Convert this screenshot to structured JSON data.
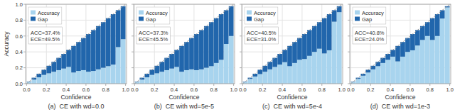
{
  "chart_data": [
    {
      "type": "bar",
      "stacked": true,
      "title": "(a)  CE with wd=0.0",
      "xlabel": "Confidence",
      "ylabel": "Accuracy",
      "x": [
        0.025,
        0.075,
        0.125,
        0.175,
        0.225,
        0.275,
        0.325,
        0.375,
        0.425,
        0.475,
        0.525,
        0.575,
        0.625,
        0.675,
        0.725,
        0.775,
        0.825,
        0.875,
        0.925,
        0.975
      ],
      "series": [
        {
          "name": "Accuracy",
          "color": "#a8d4ee",
          "values": [
            0.02,
            0.05,
            0.08,
            0.11,
            0.13,
            0.15,
            0.17,
            0.19,
            0.21,
            0.14,
            0.16,
            0.17,
            0.15,
            0.16,
            0.18,
            0.2,
            0.22,
            0.24,
            0.46,
            0.56
          ]
        },
        {
          "name": "Gap",
          "color": "#2166ac",
          "values": [
            0.005,
            0.025,
            0.045,
            0.065,
            0.095,
            0.125,
            0.155,
            0.185,
            0.215,
            0.335,
            0.365,
            0.405,
            0.475,
            0.515,
            0.545,
            0.575,
            0.605,
            0.635,
            0.465,
            0.415
          ]
        },
        {
          "type": "line",
          "color": "#999999",
          "line_style": "dashed",
          "x": [
            0,
            1
          ],
          "values": [
            0,
            1
          ]
        }
      ],
      "xlim": [
        -0.01,
        1.01
      ],
      "ylim": [
        0,
        1
      ],
      "xticks": [
        {
          "value": 0,
          "label": "0.0"
        },
        0.2,
        0.4,
        0.6,
        0.8,
        {
          "value": 1,
          "label": "1.0"
        }
      ],
      "yticks": [
        {
          "value": 0,
          "label": "0.0"
        },
        0.2,
        0.4,
        0.6,
        0.8,
        {
          "value": 1,
          "label": "1.0"
        }
      ],
      "grid": true,
      "legend": "upper left",
      "annotations": [
        "ACC=37.4%",
        "ECE=49.5%"
      ]
    },
    {
      "type": "bar",
      "stacked": true,
      "title": "(b)  CE with wd=5e-5",
      "xlabel": "Confidence",
      "x": [
        0.025,
        0.075,
        0.125,
        0.175,
        0.225,
        0.275,
        0.325,
        0.375,
        0.425,
        0.475,
        0.525,
        0.575,
        0.625,
        0.675,
        0.725,
        0.775,
        0.825,
        0.875,
        0.925,
        0.975
      ],
      "series": [
        {
          "name": "Accuracy",
          "color": "#a8d4ee",
          "values": [
            0.02,
            0.05,
            0.08,
            0.11,
            0.13,
            0.15,
            0.17,
            0.19,
            0.21,
            0.15,
            0.17,
            0.18,
            0.17,
            0.18,
            0.2,
            0.22,
            0.26,
            0.3,
            0.5,
            0.6
          ]
        },
        {
          "name": "Gap",
          "color": "#2166ac",
          "values": [
            0.005,
            0.025,
            0.045,
            0.065,
            0.095,
            0.125,
            0.155,
            0.185,
            0.215,
            0.325,
            0.355,
            0.395,
            0.455,
            0.495,
            0.525,
            0.555,
            0.565,
            0.575,
            0.425,
            0.375
          ]
        },
        {
          "type": "line",
          "color": "#999999",
          "line_style": "dashed",
          "x": [
            0,
            1
          ],
          "values": [
            0,
            1
          ]
        }
      ],
      "xlim": [
        -0.01,
        1.01
      ],
      "ylim": [
        0,
        1
      ],
      "xticks": [
        {
          "value": 0,
          "label": "0.0"
        },
        0.2,
        0.4,
        0.6,
        0.8,
        {
          "value": 1,
          "label": "1.0"
        }
      ],
      "yticks": [
        {
          "value": 0,
          "label": "0.0"
        },
        0.2,
        0.4,
        0.6,
        0.8,
        {
          "value": 1,
          "label": "1.0"
        }
      ],
      "tick_labels": "x",
      "grid": true,
      "legend": "upper left",
      "annotations": [
        "ACC=37.3%",
        "ECE=45.5%"
      ]
    },
    {
      "type": "bar",
      "stacked": true,
      "title": "(c)  CE with wd=5e-4",
      "xlabel": "Confidence",
      "x": [
        0.025,
        0.075,
        0.125,
        0.175,
        0.225,
        0.275,
        0.325,
        0.375,
        0.425,
        0.475,
        0.525,
        0.575,
        0.625,
        0.675,
        0.725,
        0.775,
        0.825,
        0.875,
        0.925,
        0.975
      ],
      "series": [
        {
          "name": "Accuracy",
          "color": "#a8d4ee",
          "values": [
            0.02,
            0.06,
            0.09,
            0.12,
            0.15,
            0.18,
            0.21,
            0.24,
            0.27,
            0.22,
            0.26,
            0.3,
            0.31,
            0.35,
            0.4,
            0.44,
            0.38,
            0.42,
            0.78,
            0.9
          ]
        },
        {
          "name": "Gap",
          "color": "#2166ac",
          "values": [
            0.005,
            0.015,
            0.035,
            0.055,
            0.075,
            0.095,
            0.115,
            0.135,
            0.155,
            0.255,
            0.265,
            0.275,
            0.315,
            0.325,
            0.325,
            0.335,
            0.445,
            0.455,
            0.145,
            0.075
          ]
        },
        {
          "type": "line",
          "color": "#999999",
          "line_style": "dashed",
          "x": [
            0,
            1
          ],
          "values": [
            0,
            1
          ]
        }
      ],
      "xlim": [
        -0.01,
        1.01
      ],
      "ylim": [
        0,
        1
      ],
      "xticks": [
        {
          "value": 0,
          "label": "0.0"
        },
        0.2,
        0.4,
        0.6,
        0.8,
        {
          "value": 1,
          "label": "1.0"
        }
      ],
      "yticks": [
        {
          "value": 0,
          "label": "0.0"
        },
        0.2,
        0.4,
        0.6,
        0.8,
        {
          "value": 1,
          "label": "1.0"
        }
      ],
      "tick_labels": "x",
      "grid": true,
      "legend": "upper left",
      "annotations": [
        "ACC=40.5%",
        "ECE=31.0%"
      ]
    },
    {
      "type": "bar",
      "stacked": true,
      "title": "(d)  CE with wd=1e-3",
      "xlabel": "Confidence",
      "x": [
        0.025,
        0.075,
        0.125,
        0.175,
        0.225,
        0.275,
        0.325,
        0.375,
        0.425,
        0.475,
        0.525,
        0.575,
        0.625,
        0.675,
        0.725,
        0.775,
        0.825,
        0.875,
        0.925,
        0.975
      ],
      "series": [
        {
          "name": "Accuracy",
          "color": "#a8d4ee",
          "values": [
            0.02,
            0.06,
            0.1,
            0.14,
            0.18,
            0.22,
            0.26,
            0.3,
            0.34,
            0.28,
            0.34,
            0.4,
            0.42,
            0.48,
            0.55,
            0.6,
            0.55,
            0.6,
            0.82,
            0.96
          ]
        },
        {
          "name": "Gap",
          "color": "#2166ac",
          "values": [
            0.005,
            0.015,
            0.025,
            0.035,
            0.045,
            0.055,
            0.065,
            0.075,
            0.085,
            0.195,
            0.185,
            0.175,
            0.205,
            0.195,
            0.175,
            0.175,
            0.275,
            0.275,
            0.105,
            0.015
          ]
        },
        {
          "type": "line",
          "color": "#999999",
          "line_style": "dashed",
          "x": [
            0,
            1
          ],
          "values": [
            0,
            1
          ]
        }
      ],
      "xlim": [
        -0.01,
        1.01
      ],
      "ylim": [
        0,
        1
      ],
      "xticks": [
        {
          "value": 0,
          "label": "0.0"
        },
        0.2,
        0.4,
        0.6,
        0.8,
        {
          "value": 1,
          "label": "1.0"
        }
      ],
      "yticks": [
        {
          "value": 0,
          "label": "0.0"
        },
        0.2,
        0.4,
        0.6,
        0.8,
        {
          "value": 1,
          "label": "1.0"
        }
      ],
      "tick_labels": "x",
      "grid": true,
      "legend": "upper left",
      "annotations": [
        "ACC=40.8%",
        "ECE=24.0%"
      ]
    }
  ]
}
